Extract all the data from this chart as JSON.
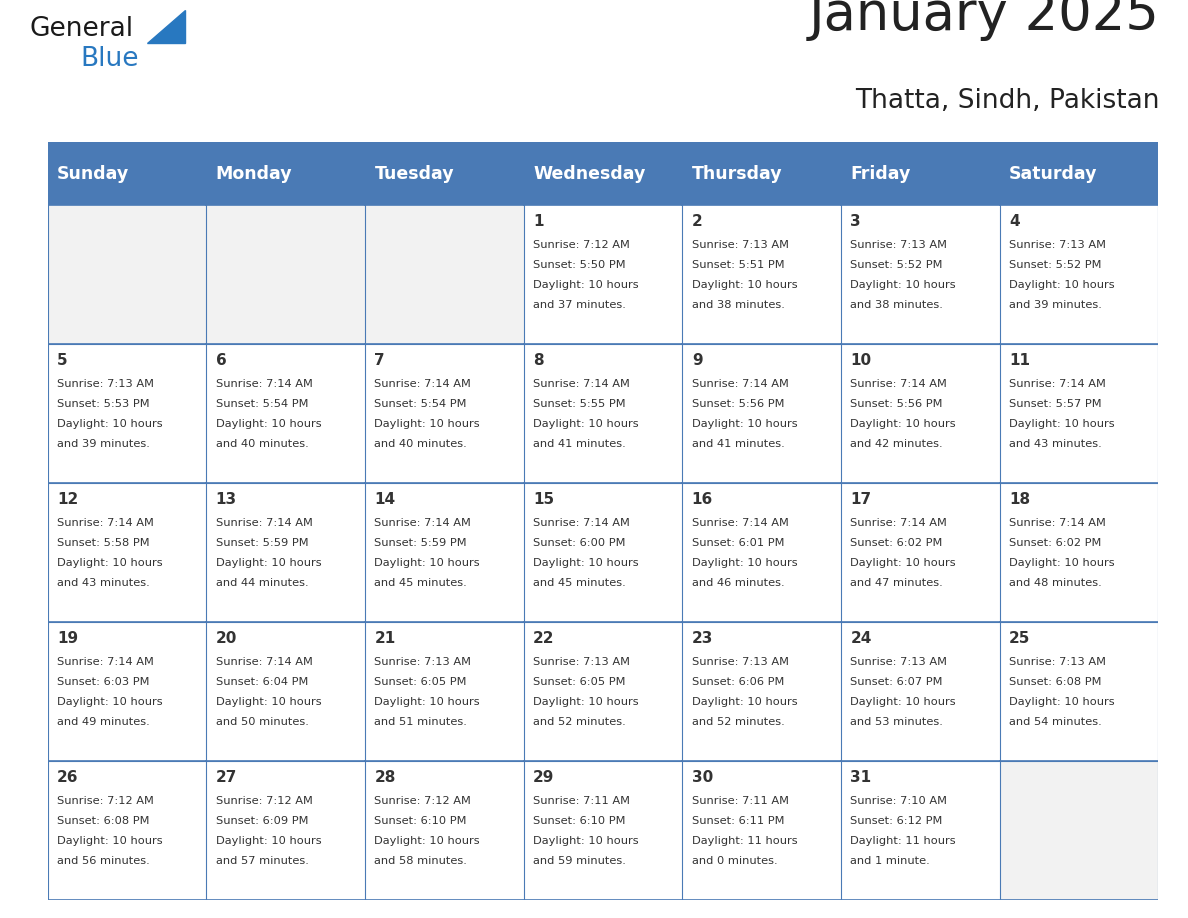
{
  "title": "January 2025",
  "subtitle": "Thatta, Sindh, Pakistan",
  "days_of_week": [
    "Sunday",
    "Monday",
    "Tuesday",
    "Wednesday",
    "Thursday",
    "Friday",
    "Saturday"
  ],
  "header_bg": "#4a7ab5",
  "header_text_color": "#ffffff",
  "cell_bg": "#ffffff",
  "empty_cell_bg": "#f2f2f2",
  "grid_line_color": "#4a7ab5",
  "title_color": "#222222",
  "text_color": "#333333",
  "logo_general_color": "#1a1a1a",
  "logo_blue_color": "#2878c0",
  "calendar_data": [
    [
      null,
      null,
      null,
      {
        "day": 1,
        "sunrise": "7:12 AM",
        "sunset": "5:50 PM",
        "daylight": "10 hours and 37 minutes."
      },
      {
        "day": 2,
        "sunrise": "7:13 AM",
        "sunset": "5:51 PM",
        "daylight": "10 hours and 38 minutes."
      },
      {
        "day": 3,
        "sunrise": "7:13 AM",
        "sunset": "5:52 PM",
        "daylight": "10 hours and 38 minutes."
      },
      {
        "day": 4,
        "sunrise": "7:13 AM",
        "sunset": "5:52 PM",
        "daylight": "10 hours and 39 minutes."
      }
    ],
    [
      {
        "day": 5,
        "sunrise": "7:13 AM",
        "sunset": "5:53 PM",
        "daylight": "10 hours and 39 minutes."
      },
      {
        "day": 6,
        "sunrise": "7:14 AM",
        "sunset": "5:54 PM",
        "daylight": "10 hours and 40 minutes."
      },
      {
        "day": 7,
        "sunrise": "7:14 AM",
        "sunset": "5:54 PM",
        "daylight": "10 hours and 40 minutes."
      },
      {
        "day": 8,
        "sunrise": "7:14 AM",
        "sunset": "5:55 PM",
        "daylight": "10 hours and 41 minutes."
      },
      {
        "day": 9,
        "sunrise": "7:14 AM",
        "sunset": "5:56 PM",
        "daylight": "10 hours and 41 minutes."
      },
      {
        "day": 10,
        "sunrise": "7:14 AM",
        "sunset": "5:56 PM",
        "daylight": "10 hours and 42 minutes."
      },
      {
        "day": 11,
        "sunrise": "7:14 AM",
        "sunset": "5:57 PM",
        "daylight": "10 hours and 43 minutes."
      }
    ],
    [
      {
        "day": 12,
        "sunrise": "7:14 AM",
        "sunset": "5:58 PM",
        "daylight": "10 hours and 43 minutes."
      },
      {
        "day": 13,
        "sunrise": "7:14 AM",
        "sunset": "5:59 PM",
        "daylight": "10 hours and 44 minutes."
      },
      {
        "day": 14,
        "sunrise": "7:14 AM",
        "sunset": "5:59 PM",
        "daylight": "10 hours and 45 minutes."
      },
      {
        "day": 15,
        "sunrise": "7:14 AM",
        "sunset": "6:00 PM",
        "daylight": "10 hours and 45 minutes."
      },
      {
        "day": 16,
        "sunrise": "7:14 AM",
        "sunset": "6:01 PM",
        "daylight": "10 hours and 46 minutes."
      },
      {
        "day": 17,
        "sunrise": "7:14 AM",
        "sunset": "6:02 PM",
        "daylight": "10 hours and 47 minutes."
      },
      {
        "day": 18,
        "sunrise": "7:14 AM",
        "sunset": "6:02 PM",
        "daylight": "10 hours and 48 minutes."
      }
    ],
    [
      {
        "day": 19,
        "sunrise": "7:14 AM",
        "sunset": "6:03 PM",
        "daylight": "10 hours and 49 minutes."
      },
      {
        "day": 20,
        "sunrise": "7:14 AM",
        "sunset": "6:04 PM",
        "daylight": "10 hours and 50 minutes."
      },
      {
        "day": 21,
        "sunrise": "7:13 AM",
        "sunset": "6:05 PM",
        "daylight": "10 hours and 51 minutes."
      },
      {
        "day": 22,
        "sunrise": "7:13 AM",
        "sunset": "6:05 PM",
        "daylight": "10 hours and 52 minutes."
      },
      {
        "day": 23,
        "sunrise": "7:13 AM",
        "sunset": "6:06 PM",
        "daylight": "10 hours and 52 minutes."
      },
      {
        "day": 24,
        "sunrise": "7:13 AM",
        "sunset": "6:07 PM",
        "daylight": "10 hours and 53 minutes."
      },
      {
        "day": 25,
        "sunrise": "7:13 AM",
        "sunset": "6:08 PM",
        "daylight": "10 hours and 54 minutes."
      }
    ],
    [
      {
        "day": 26,
        "sunrise": "7:12 AM",
        "sunset": "6:08 PM",
        "daylight": "10 hours and 56 minutes."
      },
      {
        "day": 27,
        "sunrise": "7:12 AM",
        "sunset": "6:09 PM",
        "daylight": "10 hours and 57 minutes."
      },
      {
        "day": 28,
        "sunrise": "7:12 AM",
        "sunset": "6:10 PM",
        "daylight": "10 hours and 58 minutes."
      },
      {
        "day": 29,
        "sunrise": "7:11 AM",
        "sunset": "6:10 PM",
        "daylight": "10 hours and 59 minutes."
      },
      {
        "day": 30,
        "sunrise": "7:11 AM",
        "sunset": "6:11 PM",
        "daylight": "11 hours and 0 minutes."
      },
      {
        "day": 31,
        "sunrise": "7:10 AM",
        "sunset": "6:12 PM",
        "daylight": "11 hours and 1 minute."
      },
      null
    ]
  ]
}
